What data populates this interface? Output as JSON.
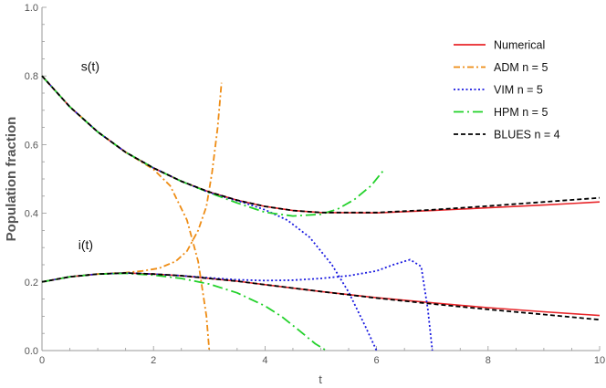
{
  "chart_data": {
    "type": "line",
    "title": "",
    "xlabel": "t",
    "ylabel": "Population fraction",
    "xlim": [
      0,
      10
    ],
    "ylim": [
      0,
      1.0
    ],
    "xticks": [
      0,
      2,
      4,
      6,
      8,
      10
    ],
    "xtick_labels": [
      "0",
      "2",
      "4",
      "6",
      "8",
      "10"
    ],
    "yticks": [
      0,
      0.2,
      0.4,
      0.6,
      0.8,
      1.0
    ],
    "ytick_labels": [
      "0.0",
      "0.2",
      "0.4",
      "0.6",
      "0.8",
      "1.0"
    ],
    "grid": false,
    "legend_position": "top-right",
    "annotations": [
      {
        "text": "s(t)",
        "x": 0.7,
        "y": 0.815
      },
      {
        "text": "i(t)",
        "x": 0.65,
        "y": 0.295
      }
    ],
    "series": [
      {
        "name": "Numerical",
        "color": "#e8262a",
        "dash": "solid",
        "curves": [
          {
            "label": "s(t)",
            "x": [
              0,
              0.5,
              1,
              1.5,
              2,
              2.5,
              3,
              3.5,
              4,
              4.5,
              5,
              6,
              7,
              8,
              9,
              10
            ],
            "y": [
              0.8,
              0.71,
              0.637,
              0.578,
              0.532,
              0.493,
              0.462,
              0.438,
              0.42,
              0.408,
              0.402,
              0.401,
              0.408,
              0.416,
              0.424,
              0.433
            ]
          },
          {
            "label": "i(t)",
            "x": [
              0,
              0.5,
              1,
              1.5,
              2,
              2.5,
              3,
              3.5,
              4,
              5,
              6,
              7,
              8,
              9,
              10
            ],
            "y": [
              0.2,
              0.215,
              0.223,
              0.226,
              0.223,
              0.218,
              0.21,
              0.202,
              0.192,
              0.172,
              0.154,
              0.139,
              0.125,
              0.113,
              0.102
            ]
          }
        ]
      },
      {
        "name": "ADM n = 5",
        "color": "#ee8c14",
        "dash": "7,3,2,3",
        "curves": [
          {
            "label": "s(t)",
            "x": [
              0,
              0.5,
              1,
              1.5,
              2,
              2.3,
              2.6,
              2.8,
              2.95,
              3.0
            ],
            "y": [
              0.8,
              0.71,
              0.637,
              0.578,
              0.528,
              0.48,
              0.38,
              0.26,
              0.1,
              0.0
            ]
          },
          {
            "label": "i(t)",
            "x": [
              0,
              0.5,
              1,
              1.5,
              1.8,
              2.1,
              2.4,
              2.6,
              2.8,
              2.95,
              3.05,
              3.15,
              3.22
            ],
            "y": [
              0.2,
              0.215,
              0.223,
              0.227,
              0.232,
              0.24,
              0.26,
              0.29,
              0.35,
              0.42,
              0.52,
              0.65,
              0.78
            ]
          }
        ]
      },
      {
        "name": "VIM n = 5",
        "color": "#1a1ae0",
        "dash": "2,2.5",
        "curves": [
          {
            "label": "s(t)",
            "x": [
              0,
              0.5,
              1,
              1.5,
              2,
              2.5,
              3,
              3.3,
              3.6,
              4.0,
              4.4,
              4.8,
              5.2,
              5.5,
              5.8,
              6.0
            ],
            "y": [
              0.8,
              0.71,
              0.637,
              0.578,
              0.532,
              0.493,
              0.46,
              0.446,
              0.432,
              0.41,
              0.38,
              0.33,
              0.25,
              0.17,
              0.07,
              0.0
            ]
          },
          {
            "label": "i(t)",
            "x": [
              0,
              0.5,
              1,
              1.5,
              2,
              2.5,
              3,
              3.5,
              4,
              4.5,
              5,
              5.5,
              6,
              6.3,
              6.6,
              6.8,
              6.92,
              7.0
            ],
            "y": [
              0.2,
              0.215,
              0.223,
              0.226,
              0.223,
              0.218,
              0.212,
              0.206,
              0.204,
              0.205,
              0.21,
              0.218,
              0.232,
              0.25,
              0.265,
              0.245,
              0.12,
              0.0
            ]
          }
        ]
      },
      {
        "name": "HPM n = 5",
        "color": "#22d12a",
        "dash": "11,4,2,4",
        "curves": [
          {
            "label": "s(t)",
            "x": [
              0,
              0.5,
              1,
              1.5,
              2,
              2.5,
              3,
              3.5,
              4,
              4.5,
              5,
              5.3,
              5.6,
              5.9,
              6.15
            ],
            "y": [
              0.8,
              0.71,
              0.637,
              0.578,
              0.532,
              0.493,
              0.46,
              0.43,
              0.403,
              0.392,
              0.397,
              0.412,
              0.44,
              0.48,
              0.53
            ]
          },
          {
            "label": "i(t)",
            "x": [
              0,
              0.5,
              1,
              1.5,
              2,
              2.5,
              3,
              3.5,
              4,
              4.3,
              4.6,
              4.9,
              5.1
            ],
            "y": [
              0.2,
              0.215,
              0.223,
              0.225,
              0.22,
              0.21,
              0.194,
              0.168,
              0.13,
              0.099,
              0.06,
              0.02,
              0.0
            ]
          }
        ]
      },
      {
        "name": "BLUES n = 4",
        "color": "#000000",
        "dash": "5,3",
        "curves": [
          {
            "label": "s(t)",
            "x": [
              0,
              0.5,
              1,
              1.5,
              2,
              2.5,
              3,
              3.5,
              4,
              4.5,
              5,
              6,
              7,
              8,
              9,
              10
            ],
            "y": [
              0.8,
              0.71,
              0.637,
              0.578,
              0.532,
              0.493,
              0.462,
              0.438,
              0.42,
              0.408,
              0.402,
              0.402,
              0.41,
              0.421,
              0.433,
              0.445
            ]
          },
          {
            "label": "i(t)",
            "x": [
              0,
              0.5,
              1,
              1.5,
              2,
              2.5,
              3,
              3.5,
              4,
              5,
              6,
              7,
              8,
              9,
              10
            ],
            "y": [
              0.2,
              0.215,
              0.223,
              0.226,
              0.223,
              0.218,
              0.21,
              0.202,
              0.192,
              0.172,
              0.153,
              0.136,
              0.12,
              0.105,
              0.09
            ]
          }
        ]
      }
    ]
  }
}
